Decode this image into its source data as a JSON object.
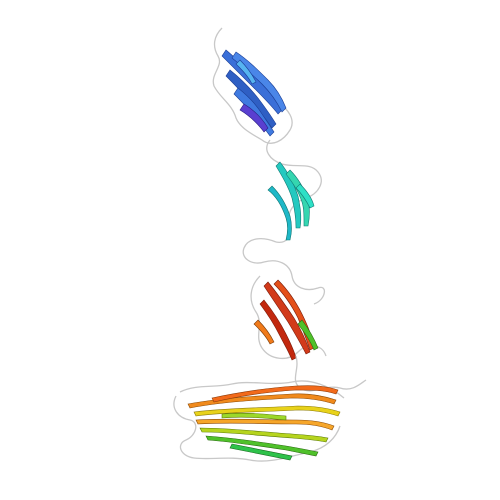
{
  "figure": {
    "subject": "ribbon-diagram",
    "background": "#ffffff",
    "color_scheme": "rainbow",
    "palette": {
      "domain_top": "#3a6fd8",
      "domain_upper": "#24c9c0",
      "domain_middle": "#d23a1a",
      "domain_bottom_yellow": "#e8d21a",
      "domain_bottom_orange": "#f08a1c",
      "domain_bottom_green": "#4fc12a",
      "coil": "#c8c8c8"
    },
    "domains": [
      {
        "name": "domain-top",
        "color": "#3a6fd8"
      },
      {
        "name": "domain-upper",
        "color": "#24c9c0"
      },
      {
        "name": "domain-middle",
        "color": "#d23a1a"
      },
      {
        "name": "domain-bottom",
        "color": "#e8d21a"
      }
    ]
  }
}
